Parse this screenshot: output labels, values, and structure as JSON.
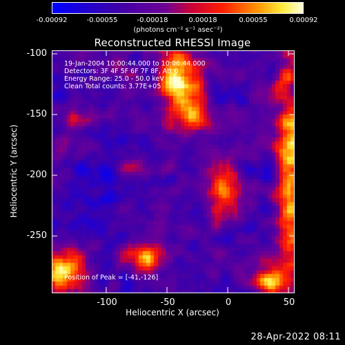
{
  "colorbar": {
    "ticks": [
      "-0.00092",
      "-0.00055",
      "-0.00018",
      "0.00018",
      "0.00055",
      "0.00092"
    ],
    "unit": "(photons cm⁻² s⁻¹ asec⁻²)"
  },
  "title": "Reconstructed RHESSI Image",
  "annotations": {
    "line1": "19-Jan-2004 10:00:44.000 to 10:06:44.000",
    "line2": "Detectors: 3F 4F 5F 6F 7F 8F, Att 0",
    "line3": "Energy Range: 25.0 - 50.0 keV",
    "line4": "Clean    Total counts: 3.77E+05",
    "peak": "Position of Peak = [-41,-126]"
  },
  "axes": {
    "xlabel": "Heliocentric X (arcsec)",
    "ylabel": "Heliocentric Y (arcsec)",
    "xticks": [
      "-100",
      "-50",
      "0",
      "50"
    ],
    "yticks": [
      "-100",
      "-150",
      "-200",
      "-250"
    ]
  },
  "footer": {
    "date": "28-Apr-2022 08:11"
  },
  "colors": {
    "low": "#0000ff",
    "mid": "#4b0082",
    "high": "#ff0000",
    "top": "#ffffc0"
  }
}
